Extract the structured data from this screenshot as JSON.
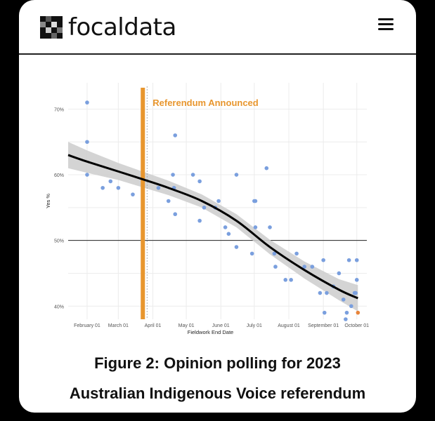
{
  "header": {
    "logo_text": "focaldata",
    "logo_icon": "focaldata-logo-icon",
    "menu_icon": "hamburger-menu-icon"
  },
  "caption": {
    "line1": "Figure 2: Opinion polling for 2023",
    "line2": "Australian Indigenous Voice referendum"
  },
  "chart_data": {
    "type": "scatter",
    "title": "",
    "xlabel": "Fieldwork End Date",
    "ylabel": "Yes %",
    "x_ticks": [
      "February 01",
      "March 01",
      "April 01",
      "May 01",
      "June 01",
      "July 01",
      "August 01",
      "September 01",
      "October 01"
    ],
    "y_ticks": [
      "40%",
      "50%",
      "60%",
      "70%"
    ],
    "xlim": [
      "2023-01-15",
      "2023-10-10"
    ],
    "ylim": [
      38,
      74
    ],
    "reference_line_y": 50,
    "annotation": {
      "text": "Referendum Announced",
      "date": "2023-03-23",
      "color": "#e8962e"
    },
    "point_color": "#7a9fde",
    "highlight_color": "#e8843a",
    "points": [
      {
        "x": "2023-02-01",
        "y": 71
      },
      {
        "x": "2023-02-01",
        "y": 65
      },
      {
        "x": "2023-02-01",
        "y": 60
      },
      {
        "x": "2023-02-15",
        "y": 58
      },
      {
        "x": "2023-02-22",
        "y": 59
      },
      {
        "x": "2023-03-01",
        "y": 58
      },
      {
        "x": "2023-03-14",
        "y": 57
      },
      {
        "x": "2023-04-06",
        "y": 58
      },
      {
        "x": "2023-04-15",
        "y": 56
      },
      {
        "x": "2023-04-19",
        "y": 60
      },
      {
        "x": "2023-04-20",
        "y": 58
      },
      {
        "x": "2023-04-21",
        "y": 66
      },
      {
        "x": "2023-04-21",
        "y": 54
      },
      {
        "x": "2023-05-07",
        "y": 60
      },
      {
        "x": "2023-05-13",
        "y": 59
      },
      {
        "x": "2023-05-13",
        "y": 53
      },
      {
        "x": "2023-05-17",
        "y": 55
      },
      {
        "x": "2023-05-27",
        "y": 55
      },
      {
        "x": "2023-05-30",
        "y": 56
      },
      {
        "x": "2023-06-05",
        "y": 52
      },
      {
        "x": "2023-06-08",
        "y": 51
      },
      {
        "x": "2023-06-15",
        "y": 60
      },
      {
        "x": "2023-06-15",
        "y": 49
      },
      {
        "x": "2023-06-29",
        "y": 48
      },
      {
        "x": "2023-07-01",
        "y": 56
      },
      {
        "x": "2023-07-02",
        "y": 56
      },
      {
        "x": "2023-07-02",
        "y": 52
      },
      {
        "x": "2023-07-12",
        "y": 61
      },
      {
        "x": "2023-07-15",
        "y": 52
      },
      {
        "x": "2023-07-19",
        "y": 48
      },
      {
        "x": "2023-07-20",
        "y": 46
      },
      {
        "x": "2023-07-29",
        "y": 44
      },
      {
        "x": "2023-08-03",
        "y": 44
      },
      {
        "x": "2023-08-08",
        "y": 48
      },
      {
        "x": "2023-08-15",
        "y": 46
      },
      {
        "x": "2023-08-22",
        "y": 46
      },
      {
        "x": "2023-08-29",
        "y": 42
      },
      {
        "x": "2023-09-01",
        "y": 47
      },
      {
        "x": "2023-09-02",
        "y": 39
      },
      {
        "x": "2023-09-04",
        "y": 42
      },
      {
        "x": "2023-09-10",
        "y": 43
      },
      {
        "x": "2023-09-15",
        "y": 45
      },
      {
        "x": "2023-09-19",
        "y": 41
      },
      {
        "x": "2023-09-21",
        "y": 38
      },
      {
        "x": "2023-09-22",
        "y": 39
      },
      {
        "x": "2023-09-24",
        "y": 47
      },
      {
        "x": "2023-09-26",
        "y": 40
      },
      {
        "x": "2023-09-29",
        "y": 42
      },
      {
        "x": "2023-09-30",
        "y": 42
      },
      {
        "x": "2023-10-01",
        "y": 44
      },
      {
        "x": "2023-10-01",
        "y": 47
      },
      {
        "x": "2023-10-02",
        "y": 39,
        "highlight": true
      }
    ],
    "trend": [
      {
        "x": "2023-01-15",
        "y": 63
      },
      {
        "x": "2023-02-01",
        "y": 62
      },
      {
        "x": "2023-03-01",
        "y": 60.5
      },
      {
        "x": "2023-03-23",
        "y": 59.3
      },
      {
        "x": "2023-04-15",
        "y": 58
      },
      {
        "x": "2023-05-15",
        "y": 56
      },
      {
        "x": "2023-06-15",
        "y": 53
      },
      {
        "x": "2023-07-15",
        "y": 49
      },
      {
        "x": "2023-08-15",
        "y": 45.5
      },
      {
        "x": "2023-09-15",
        "y": 42.5
      },
      {
        "x": "2023-10-02",
        "y": 41.2
      }
    ],
    "confidence_band": [
      {
        "x": "2023-01-15",
        "lo": 61,
        "hi": 65
      },
      {
        "x": "2023-02-01",
        "lo": 60.3,
        "hi": 63.7
      },
      {
        "x": "2023-03-01",
        "lo": 59.2,
        "hi": 61.8
      },
      {
        "x": "2023-04-15",
        "lo": 56.9,
        "hi": 59.1
      },
      {
        "x": "2023-05-15",
        "lo": 55,
        "hi": 57
      },
      {
        "x": "2023-06-15",
        "lo": 52,
        "hi": 54
      },
      {
        "x": "2023-07-15",
        "lo": 47.9,
        "hi": 50.1
      },
      {
        "x": "2023-08-15",
        "lo": 44.2,
        "hi": 46.8
      },
      {
        "x": "2023-09-15",
        "lo": 40.9,
        "hi": 44.1
      },
      {
        "x": "2023-10-02",
        "lo": 39.2,
        "hi": 43.2
      }
    ],
    "grid": true,
    "legend": "none"
  }
}
